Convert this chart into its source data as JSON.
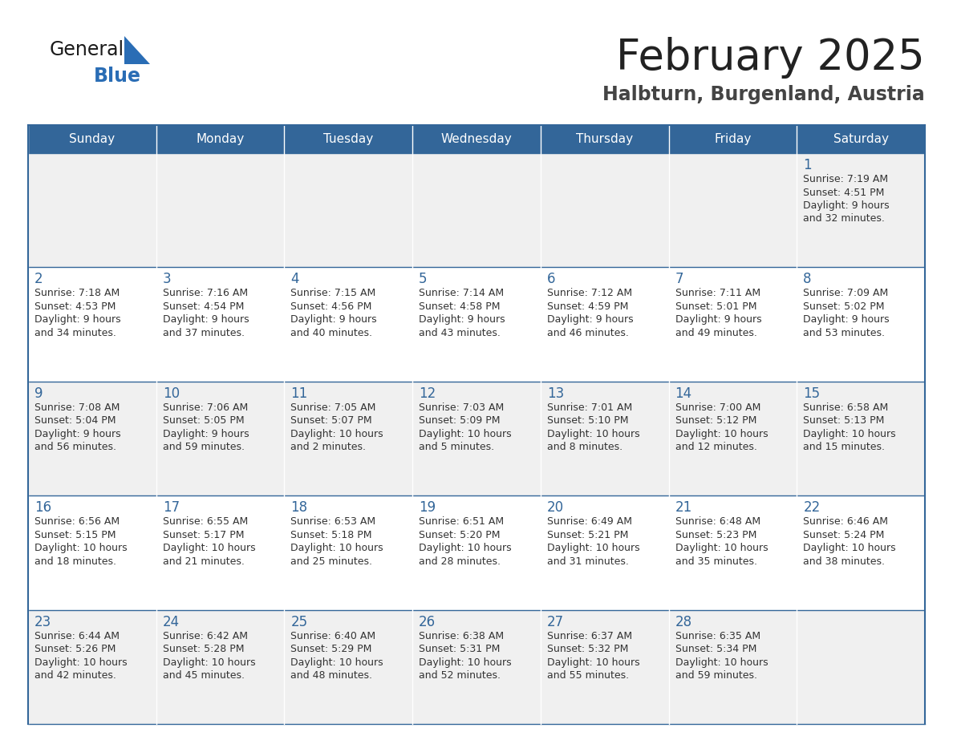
{
  "title": "February 2025",
  "subtitle": "Halbturn, Burgenland, Austria",
  "days_of_week": [
    "Sunday",
    "Monday",
    "Tuesday",
    "Wednesday",
    "Thursday",
    "Friday",
    "Saturday"
  ],
  "header_bg": "#336699",
  "header_text": "#ffffff",
  "row_bg_even": "#f0f0f0",
  "row_bg_odd": "#ffffff",
  "day_number_color": "#336699",
  "info_text_color": "#333333",
  "title_color": "#222222",
  "subtitle_color": "#444444",
  "logo_general_color": "#1a1a1a",
  "logo_blue_color": "#2a6db5",
  "border_color": "#336699",
  "cell_sep_color": "#cccccc",
  "calendar": [
    [
      null,
      null,
      null,
      null,
      null,
      null,
      {
        "day": 1,
        "sunrise": "7:19 AM",
        "sunset": "4:51 PM",
        "daylight": "9 hours\nand 32 minutes."
      }
    ],
    [
      {
        "day": 2,
        "sunrise": "7:18 AM",
        "sunset": "4:53 PM",
        "daylight": "9 hours\nand 34 minutes."
      },
      {
        "day": 3,
        "sunrise": "7:16 AM",
        "sunset": "4:54 PM",
        "daylight": "9 hours\nand 37 minutes."
      },
      {
        "day": 4,
        "sunrise": "7:15 AM",
        "sunset": "4:56 PM",
        "daylight": "9 hours\nand 40 minutes."
      },
      {
        "day": 5,
        "sunrise": "7:14 AM",
        "sunset": "4:58 PM",
        "daylight": "9 hours\nand 43 minutes."
      },
      {
        "day": 6,
        "sunrise": "7:12 AM",
        "sunset": "4:59 PM",
        "daylight": "9 hours\nand 46 minutes."
      },
      {
        "day": 7,
        "sunrise": "7:11 AM",
        "sunset": "5:01 PM",
        "daylight": "9 hours\nand 49 minutes."
      },
      {
        "day": 8,
        "sunrise": "7:09 AM",
        "sunset": "5:02 PM",
        "daylight": "9 hours\nand 53 minutes."
      }
    ],
    [
      {
        "day": 9,
        "sunrise": "7:08 AM",
        "sunset": "5:04 PM",
        "daylight": "9 hours\nand 56 minutes."
      },
      {
        "day": 10,
        "sunrise": "7:06 AM",
        "sunset": "5:05 PM",
        "daylight": "9 hours\nand 59 minutes."
      },
      {
        "day": 11,
        "sunrise": "7:05 AM",
        "sunset": "5:07 PM",
        "daylight": "10 hours\nand 2 minutes."
      },
      {
        "day": 12,
        "sunrise": "7:03 AM",
        "sunset": "5:09 PM",
        "daylight": "10 hours\nand 5 minutes."
      },
      {
        "day": 13,
        "sunrise": "7:01 AM",
        "sunset": "5:10 PM",
        "daylight": "10 hours\nand 8 minutes."
      },
      {
        "day": 14,
        "sunrise": "7:00 AM",
        "sunset": "5:12 PM",
        "daylight": "10 hours\nand 12 minutes."
      },
      {
        "day": 15,
        "sunrise": "6:58 AM",
        "sunset": "5:13 PM",
        "daylight": "10 hours\nand 15 minutes."
      }
    ],
    [
      {
        "day": 16,
        "sunrise": "6:56 AM",
        "sunset": "5:15 PM",
        "daylight": "10 hours\nand 18 minutes."
      },
      {
        "day": 17,
        "sunrise": "6:55 AM",
        "sunset": "5:17 PM",
        "daylight": "10 hours\nand 21 minutes."
      },
      {
        "day": 18,
        "sunrise": "6:53 AM",
        "sunset": "5:18 PM",
        "daylight": "10 hours\nand 25 minutes."
      },
      {
        "day": 19,
        "sunrise": "6:51 AM",
        "sunset": "5:20 PM",
        "daylight": "10 hours\nand 28 minutes."
      },
      {
        "day": 20,
        "sunrise": "6:49 AM",
        "sunset": "5:21 PM",
        "daylight": "10 hours\nand 31 minutes."
      },
      {
        "day": 21,
        "sunrise": "6:48 AM",
        "sunset": "5:23 PM",
        "daylight": "10 hours\nand 35 minutes."
      },
      {
        "day": 22,
        "sunrise": "6:46 AM",
        "sunset": "5:24 PM",
        "daylight": "10 hours\nand 38 minutes."
      }
    ],
    [
      {
        "day": 23,
        "sunrise": "6:44 AM",
        "sunset": "5:26 PM",
        "daylight": "10 hours\nand 42 minutes."
      },
      {
        "day": 24,
        "sunrise": "6:42 AM",
        "sunset": "5:28 PM",
        "daylight": "10 hours\nand 45 minutes."
      },
      {
        "day": 25,
        "sunrise": "6:40 AM",
        "sunset": "5:29 PM",
        "daylight": "10 hours\nand 48 minutes."
      },
      {
        "day": 26,
        "sunrise": "6:38 AM",
        "sunset": "5:31 PM",
        "daylight": "10 hours\nand 52 minutes."
      },
      {
        "day": 27,
        "sunrise": "6:37 AM",
        "sunset": "5:32 PM",
        "daylight": "10 hours\nand 55 minutes."
      },
      {
        "day": 28,
        "sunrise": "6:35 AM",
        "sunset": "5:34 PM",
        "daylight": "10 hours\nand 59 minutes."
      },
      null
    ]
  ]
}
